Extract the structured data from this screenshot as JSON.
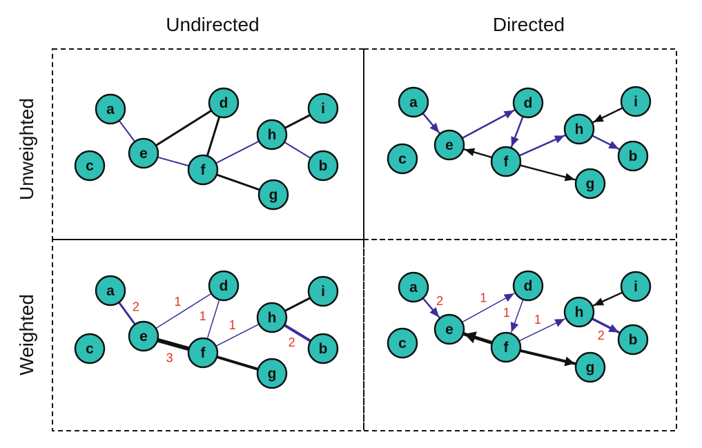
{
  "column_titles": [
    "Undirected",
    "Directed"
  ],
  "row_titles": [
    "Unweighted",
    "Weighted"
  ],
  "colors": {
    "node_fill": "#2fbfb5",
    "node_stroke": "#111111",
    "edge_blue": "#3b2e9a",
    "edge_black": "#111111",
    "weight_label": "#e4321e"
  },
  "panels": [
    {
      "id": "undirected-unweighted",
      "edges": [
        {
          "from": "a",
          "to": "e",
          "color": "blue",
          "width": 2
        },
        {
          "from": "e",
          "to": "d",
          "color": "black",
          "width": 3
        },
        {
          "from": "e",
          "to": "f",
          "color": "blue",
          "width": 2
        },
        {
          "from": "f",
          "to": "d",
          "color": "black",
          "width": 3
        },
        {
          "from": "f",
          "to": "h",
          "color": "blue",
          "width": 2
        },
        {
          "from": "f",
          "to": "g",
          "color": "black",
          "width": 3
        },
        {
          "from": "h",
          "to": "i",
          "color": "black",
          "width": 3
        },
        {
          "from": "h",
          "to": "b",
          "color": "blue",
          "width": 2
        }
      ]
    },
    {
      "id": "directed-unweighted",
      "edges": [
        {
          "from": "a",
          "to": "e",
          "color": "blue",
          "width": 2.5,
          "arrow": true
        },
        {
          "from": "e",
          "to": "d",
          "color": "blue",
          "width": 2.5,
          "arrow": true
        },
        {
          "from": "d",
          "to": "f",
          "color": "blue",
          "width": 2.5,
          "arrow": true
        },
        {
          "from": "f",
          "to": "h",
          "color": "blue",
          "width": 2.5,
          "arrow": true
        },
        {
          "from": "h",
          "to": "b",
          "color": "blue",
          "width": 2.5,
          "arrow": true
        },
        {
          "from": "i",
          "to": "h",
          "color": "black",
          "width": 2.5,
          "arrow": true
        },
        {
          "from": "f",
          "to": "e",
          "color": "black",
          "width": 2.5,
          "arrow": true
        },
        {
          "from": "f",
          "to": "g",
          "color": "black",
          "width": 2.5,
          "arrow": true
        }
      ]
    },
    {
      "id": "undirected-weighted",
      "edges": [
        {
          "from": "a",
          "to": "e",
          "color": "blue",
          "width": 3,
          "weight": "2"
        },
        {
          "from": "e",
          "to": "d",
          "color": "blue",
          "width": 1.5,
          "weight": "1"
        },
        {
          "from": "e",
          "to": "f",
          "color": "black",
          "width": 6,
          "weight": "3"
        },
        {
          "from": "f",
          "to": "d",
          "color": "blue",
          "width": 1.5,
          "weight": "1"
        },
        {
          "from": "f",
          "to": "h",
          "color": "blue",
          "width": 1.5,
          "weight": "1"
        },
        {
          "from": "f",
          "to": "g",
          "color": "black",
          "width": 4
        },
        {
          "from": "h",
          "to": "i",
          "color": "black",
          "width": 3
        },
        {
          "from": "h",
          "to": "b",
          "color": "blue",
          "width": 4,
          "weight": "2"
        }
      ]
    },
    {
      "id": "directed-weighted",
      "edges": [
        {
          "from": "a",
          "to": "e",
          "color": "blue",
          "width": 2.5,
          "arrow": true,
          "weight": "2"
        },
        {
          "from": "e",
          "to": "d",
          "color": "blue",
          "width": 1.5,
          "arrow": true,
          "weight": "1"
        },
        {
          "from": "d",
          "to": "f",
          "color": "blue",
          "width": 1.5,
          "arrow": true,
          "weight": "1"
        },
        {
          "from": "f",
          "to": "h",
          "color": "blue",
          "width": 1.5,
          "arrow": true,
          "weight": "1"
        },
        {
          "from": "h",
          "to": "b",
          "color": "blue",
          "width": 3.5,
          "arrow": true,
          "weight": "2"
        },
        {
          "from": "i",
          "to": "h",
          "color": "black",
          "width": 2.5,
          "arrow": true
        },
        {
          "from": "f",
          "to": "e",
          "color": "black",
          "width": 5,
          "arrow": true
        },
        {
          "from": "f",
          "to": "g",
          "color": "black",
          "width": 4,
          "arrow": true
        }
      ]
    }
  ],
  "node_names": [
    "a",
    "b",
    "c",
    "d",
    "e",
    "f",
    "g",
    "h",
    "i"
  ]
}
